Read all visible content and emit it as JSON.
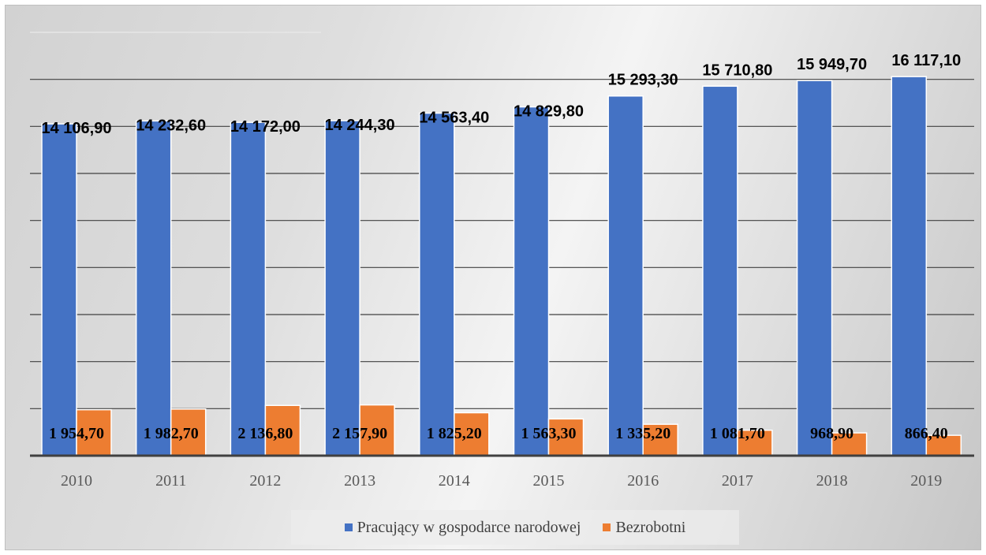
{
  "chart_data": {
    "type": "bar",
    "categories": [
      "2010",
      "2011",
      "2012",
      "2013",
      "2014",
      "2015",
      "2016",
      "2017",
      "2018",
      "2019"
    ],
    "series": [
      {
        "name": "Pracujący w gospodarce narodowej",
        "color": "#4472C4",
        "values": [
          14106.9,
          14232.6,
          14172.0,
          14244.3,
          14563.4,
          14829.8,
          15293.3,
          15710.8,
          15949.7,
          16117.1
        ],
        "labels": [
          "14 106,90",
          "14 232,60",
          "14 172,00",
          "14 244,30",
          "14 563,40",
          "14 829,80",
          "15 293,30",
          "15 710,80",
          "15 949,70",
          "16 117,10"
        ]
      },
      {
        "name": "Bezrobotni",
        "color": "#ED7D31",
        "values": [
          1954.7,
          1982.7,
          2136.8,
          2157.9,
          1825.2,
          1563.3,
          1335.2,
          1081.7,
          968.9,
          866.4
        ],
        "labels": [
          "1 954,70",
          "1 982,70",
          "2 136,80",
          "2 157,90",
          "1 825,20",
          "1 563,30",
          "1 335,20",
          "1 081,70",
          "968,90",
          "866,40"
        ]
      }
    ],
    "ylim": [
      0,
      18000
    ],
    "grid": true,
    "legend_position": "bottom",
    "title": "",
    "xlabel": "",
    "ylabel": ""
  }
}
